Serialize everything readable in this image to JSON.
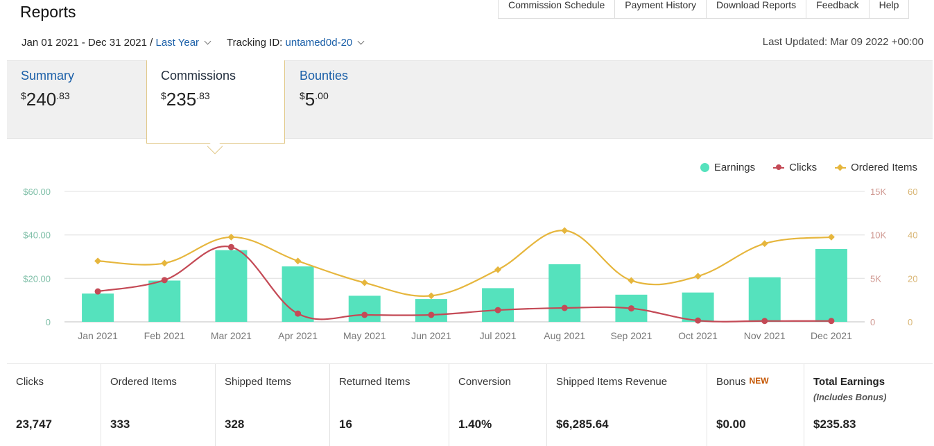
{
  "header": {
    "title": "Reports",
    "links": [
      "Commission Schedule",
      "Payment History",
      "Download Reports",
      "Feedback",
      "Help"
    ],
    "date_range": "Jan 01 2021 - Dec 31 2021 /",
    "date_preset": "Last Year",
    "tracking_label": "Tracking ID:",
    "tracking_id": "untamed0d-20",
    "last_updated": "Last Updated: Mar 09 2022 +00:00"
  },
  "tabs": [
    {
      "label": "Summary",
      "currency": "$",
      "whole": "240",
      "cents": ".83"
    },
    {
      "label": "Commissions",
      "currency": "$",
      "whole": "235",
      "cents": ".83"
    },
    {
      "label": "Bounties",
      "currency": "$",
      "whole": "5",
      "cents": ".00"
    }
  ],
  "legend": [
    "Earnings",
    "Clicks",
    "Ordered Items"
  ],
  "colors": {
    "earnings": "#55e2bd",
    "clicks": "#c44a56",
    "items": "#e6b63d",
    "link": "#1a5fa8"
  },
  "chart_data": {
    "type": "bar",
    "categories": [
      "Jan 2021",
      "Feb 2021",
      "Mar 2021",
      "Apr 2021",
      "May 2021",
      "Jun 2021",
      "Jul 2021",
      "Aug 2021",
      "Sep 2021",
      "Oct 2021",
      "Nov 2021",
      "Dec 2021"
    ],
    "series": [
      {
        "name": "Earnings",
        "type": "bar",
        "axis": "left",
        "values": [
          13,
          19,
          33,
          25.5,
          12,
          10.5,
          15.5,
          26.5,
          12.5,
          13.5,
          20.5,
          33.5
        ]
      },
      {
        "name": "Clicks",
        "type": "line",
        "axis": "right-outer",
        "values": [
          3500,
          4800,
          8600,
          950,
          800,
          800,
          1350,
          1600,
          1550,
          150,
          100,
          100
        ]
      },
      {
        "name": "Ordered Items",
        "type": "line",
        "axis": "right-inner",
        "values": [
          28,
          27,
          39,
          28,
          18,
          12,
          24,
          42,
          19,
          21,
          36,
          39
        ]
      }
    ],
    "left_axis": {
      "ticks": [
        "$60.00",
        "$40.00",
        "$20.00",
        "0"
      ],
      "ylim": [
        0,
        60
      ]
    },
    "right_outer_axis": {
      "ticks": [
        "15K",
        "10K",
        "5K",
        "0"
      ],
      "ylim": [
        0,
        15000
      ]
    },
    "right_inner_axis": {
      "ticks": [
        "60",
        "40",
        "20",
        "0"
      ],
      "ylim": [
        0,
        60
      ]
    },
    "grid": true,
    "legend_position": "top-right"
  },
  "stats": [
    {
      "label": "Clicks",
      "value": "23,747"
    },
    {
      "label": "Ordered Items",
      "value": "333"
    },
    {
      "label": "Shipped Items",
      "value": "328"
    },
    {
      "label": "Returned Items",
      "value": "16"
    },
    {
      "label": "Conversion",
      "value": "1.40%"
    },
    {
      "label": "Shipped Items Revenue",
      "value": "$6,285.64"
    },
    {
      "label": "Bonus",
      "badge": "NEW",
      "value": "$0.00"
    },
    {
      "label": "Total Earnings",
      "sub": "(Includes Bonus)",
      "value": "$235.83"
    }
  ]
}
